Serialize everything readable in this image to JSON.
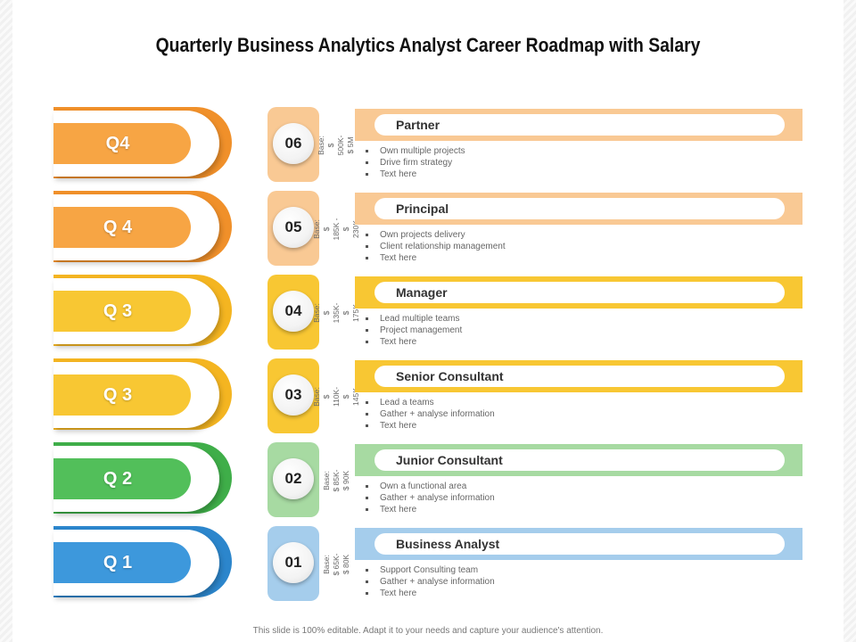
{
  "title": "Quarterly Business Analytics Analyst Career Roadmap with Salary",
  "footer": "This slide is 100% editable. Adapt it to your needs and capture your audience's attention.",
  "rows": [
    {
      "quarter": "Q4",
      "step": "06",
      "salary": "Base: $ 500K- $ 5M",
      "role": "Partner",
      "bullets": [
        "Own multiple projects",
        "Drive firm strategy",
        "Text here"
      ],
      "colors": {
        "dark": "#f0902a",
        "mid": "#f7a544",
        "light": "#f9c994"
      }
    },
    {
      "quarter": "Q 4",
      "step": "05",
      "salary": "Base: $ 185K - $ 230K",
      "role": "Principal",
      "bullets": [
        "Own projects delivery",
        "Client relationship management",
        "Text here"
      ],
      "colors": {
        "dark": "#f0902a",
        "mid": "#f7a544",
        "light": "#f9c994"
      }
    },
    {
      "quarter": "Q 3",
      "step": "04",
      "salary": "Base: $ 135K- $ 175K",
      "role": "Manager",
      "bullets": [
        "Lead multiple teams",
        "Project management",
        "Text here"
      ],
      "colors": {
        "dark": "#f4b521",
        "mid": "#f8c733",
        "light": "#f8c733"
      }
    },
    {
      "quarter": "Q 3",
      "step": "03",
      "salary": "Base: $ 110K- $ 145K",
      "role": "Senior Consultant",
      "bullets": [
        "Lead a teams",
        "Gather + analyse information",
        "Text here"
      ],
      "colors": {
        "dark": "#f4b521",
        "mid": "#f8c733",
        "light": "#f8c733"
      }
    },
    {
      "quarter": "Q 2",
      "step": "02",
      "salary": "Base: $ 85K- $ 90K",
      "role": "Junior Consultant",
      "bullets": [
        "Own a functional area",
        "Gather + analyse information",
        "Text here"
      ],
      "colors": {
        "dark": "#3fae49",
        "mid": "#52bf5a",
        "light": "#a7daa2"
      }
    },
    {
      "quarter": "Q 1",
      "step": "01",
      "salary": "Base: $ 65K- $ 80K",
      "role": "Business Analyst",
      "bullets": [
        "Support Consulting team",
        "Gather + analyse information",
        "Text here"
      ],
      "colors": {
        "dark": "#2c86cc",
        "mid": "#3d98dc",
        "light": "#a5cdec"
      }
    }
  ]
}
